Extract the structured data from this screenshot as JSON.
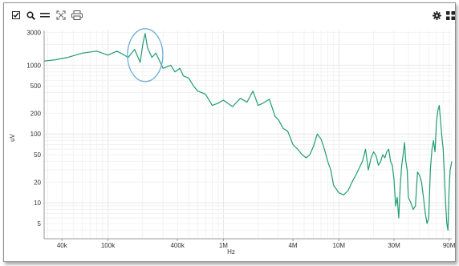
{
  "toolbar": {
    "icons": [
      "checkbox-icon",
      "zoom-icon",
      "equals-icon",
      "fit-icon",
      "print-icon",
      "settings-icon",
      "grid-icon"
    ]
  },
  "colors": {
    "trace": "#1f9c74",
    "highlight": "#6aaed6",
    "grid_major": "#e6e6e6",
    "grid_minor": "#f2f2f2",
    "axis": "#9a9a9a"
  },
  "chart_data": {
    "type": "line",
    "title": "",
    "xlabel": "Hz",
    "ylabel": "uV",
    "xscale": "log",
    "yscale": "log",
    "xlim": [
      28000,
      95000000
    ],
    "ylim": [
      3,
      3200
    ],
    "grid": true,
    "x_ticks": [
      {
        "value": 40000,
        "label": "40k"
      },
      {
        "value": 100000,
        "label": "100k"
      },
      {
        "value": 400000,
        "label": "400k"
      },
      {
        "value": 1000000,
        "label": "1M"
      },
      {
        "value": 4000000,
        "label": "4M"
      },
      {
        "value": 10000000,
        "label": "10M"
      },
      {
        "value": 30000000,
        "label": "30M"
      },
      {
        "value": 90000000,
        "label": "90M"
      }
    ],
    "y_ticks": [
      {
        "value": 3000,
        "label": "3000"
      },
      {
        "value": 1000,
        "label": "1000"
      },
      {
        "value": 500,
        "label": "500"
      },
      {
        "value": 200,
        "label": "200"
      },
      {
        "value": 100,
        "label": "100"
      },
      {
        "value": 50,
        "label": "50"
      },
      {
        "value": 20,
        "label": "20"
      },
      {
        "value": 10,
        "label": "10"
      },
      {
        "value": 5,
        "label": "5"
      }
    ],
    "series": [
      {
        "x": [
          28000,
          35000,
          45000,
          60000,
          80000,
          100000,
          120000,
          150000,
          170000,
          190000,
          200000,
          210000,
          220000,
          240000,
          260000,
          300000,
          350000,
          380000,
          420000,
          450000,
          500000,
          550000,
          600000,
          700000,
          800000,
          900000,
          1000000,
          1200000,
          1400000,
          1600000,
          1800000,
          2000000,
          2200000,
          2500000,
          2800000,
          3000000,
          3300000,
          3600000,
          4000000,
          4400000,
          4800000,
          5200000,
          5600000,
          6000000,
          6500000,
          7000000,
          7500000,
          8000000,
          8500000,
          9000000,
          10000000,
          11000000,
          12000000,
          13000000,
          14000000,
          15000000,
          16000000,
          17000000,
          18000000,
          19000000,
          20000000,
          21000000,
          22000000,
          23000000,
          24000000,
          25000000,
          26000000,
          27000000,
          28000000,
          29000000,
          30000000,
          31000000,
          32000000,
          33000000,
          34000000,
          35000000,
          36000000,
          37000000,
          38000000,
          39000000,
          40000000,
          42000000,
          44000000,
          46000000,
          48000000,
          50000000,
          52000000,
          54000000,
          56000000,
          58000000,
          60000000,
          62000000,
          64000000,
          66000000,
          68000000,
          70000000,
          72000000,
          74000000,
          76000000,
          78000000,
          80000000,
          82000000,
          84000000,
          86000000,
          88000000,
          90000000,
          92000000,
          95000000
        ],
        "y": [
          1150,
          1200,
          1300,
          1500,
          1600,
          1400,
          1600,
          1300,
          1700,
          1100,
          2000,
          2900,
          1800,
          1300,
          1500,
          900,
          1000,
          800,
          900,
          700,
          650,
          500,
          420,
          380,
          260,
          280,
          310,
          250,
          330,
          290,
          420,
          260,
          280,
          320,
          180,
          160,
          120,
          110,
          70,
          60,
          50,
          45,
          50,
          65,
          100,
          85,
          60,
          40,
          30,
          18,
          14,
          13,
          15,
          20,
          25,
          32,
          40,
          60,
          30,
          45,
          55,
          48,
          35,
          40,
          50,
          45,
          55,
          60,
          40,
          35,
          22,
          9,
          12,
          6,
          18,
          35,
          50,
          75,
          40,
          30,
          12,
          10,
          8,
          9,
          28,
          25,
          20,
          12,
          7,
          5,
          6,
          30,
          60,
          80,
          55,
          150,
          220,
          260,
          150,
          90,
          60,
          25,
          10,
          5,
          4,
          15,
          30,
          40
        ]
      }
    ],
    "annotations": [
      {
        "shape": "ellipse",
        "x_center": 210000,
        "y_center": 1400
      }
    ]
  }
}
